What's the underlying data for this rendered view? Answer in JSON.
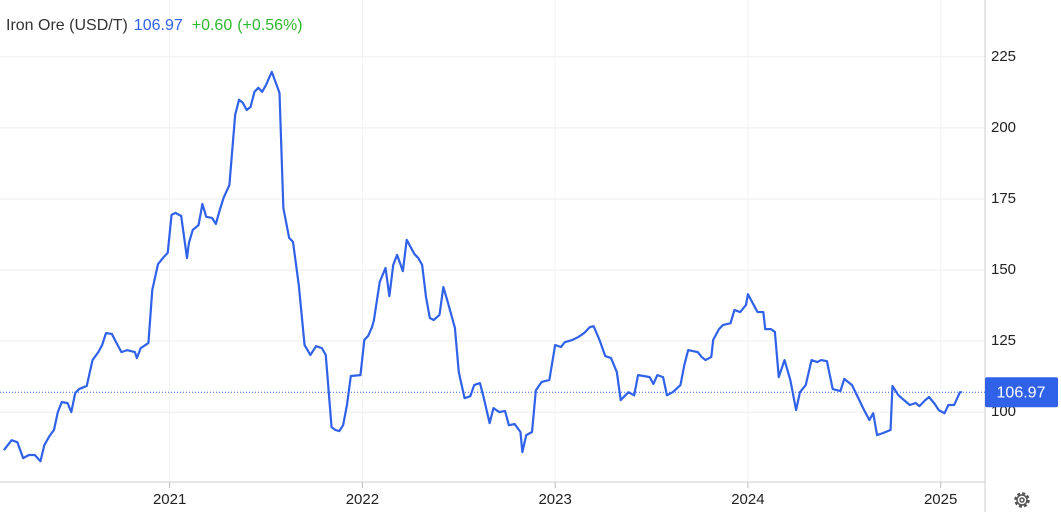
{
  "chart_data": {
    "type": "line",
    "title": "Iron Ore (USD/T)",
    "last_price": 106.97,
    "change": "+0.60",
    "change_pct": "(+0.56%)",
    "xlim": [
      2020.12,
      2025.23
    ],
    "xticks": [
      2021,
      2022,
      2023,
      2024,
      2025
    ],
    "ylim": [
      75.4,
      245
    ],
    "yticks": [
      100,
      125,
      150,
      175,
      200,
      225
    ],
    "grid": true,
    "x": [
      2020.14,
      2020.18,
      2020.21,
      2020.24,
      2020.27,
      2020.3,
      2020.33,
      2020.35,
      2020.38,
      2020.4,
      2020.42,
      2020.44,
      2020.47,
      2020.49,
      2020.51,
      2020.53,
      2020.57,
      2020.6,
      2020.63,
      2020.65,
      2020.67,
      2020.7,
      2020.73,
      2020.75,
      2020.78,
      2020.82,
      2020.83,
      2020.85,
      2020.89,
      2020.91,
      2020.94,
      2020.97,
      2020.99,
      2021.01,
      2021.03,
      2021.06,
      2021.09,
      2021.1,
      2021.12,
      2021.15,
      2021.17,
      2021.19,
      2021.22,
      2021.24,
      2021.26,
      2021.28,
      2021.31,
      2021.34,
      2021.36,
      2021.38,
      2021.4,
      2021.42,
      2021.44,
      2021.46,
      2021.48,
      2021.5,
      2021.53,
      2021.57,
      2021.59,
      2021.62,
      2021.64,
      2021.67,
      2021.7,
      2021.73,
      2021.76,
      2021.79,
      2021.81,
      2021.84,
      2021.86,
      2021.88,
      2021.9,
      2021.92,
      2021.94,
      2021.99,
      2022.01,
      2022.03,
      2022.05,
      2022.06,
      2022.09,
      2022.12,
      2022.14,
      2022.16,
      2022.18,
      2022.21,
      2022.23,
      2022.27,
      2022.29,
      2022.31,
      2022.33,
      2022.35,
      2022.37,
      2022.4,
      2022.42,
      2022.44,
      2022.48,
      2022.5,
      2022.53,
      2022.56,
      2022.58,
      2022.61,
      2022.63,
      2022.66,
      2022.68,
      2022.71,
      2022.74,
      2022.76,
      2022.79,
      2022.82,
      2022.83,
      2022.85,
      2022.88,
      2022.9,
      2022.93,
      2022.97,
      2023.0,
      2023.03,
      2023.05,
      2023.09,
      2023.12,
      2023.15,
      2023.18,
      2023.2,
      2023.23,
      2023.26,
      2023.29,
      2023.32,
      2023.34,
      2023.38,
      2023.41,
      2023.43,
      2023.46,
      2023.49,
      2023.51,
      2023.53,
      2023.56,
      2023.58,
      2023.61,
      2023.65,
      2023.67,
      2023.69,
      2023.72,
      2023.74,
      2023.76,
      2023.78,
      2023.81,
      2023.82,
      2023.85,
      2023.87,
      2023.91,
      2023.93,
      2023.96,
      2023.99,
      2024.0,
      2024.03,
      2024.05,
      2024.08,
      2024.09,
      2024.12,
      2024.14,
      2024.16,
      2024.19,
      2024.22,
      2024.25,
      2024.27,
      2024.3,
      2024.33,
      2024.36,
      2024.38,
      2024.41,
      2024.44,
      2024.48,
      2024.5,
      2024.54,
      2024.57,
      2024.6,
      2024.63,
      2024.65,
      2024.67,
      2024.7,
      2024.74,
      2024.75,
      2024.78,
      2024.81,
      2024.84,
      2024.87,
      2024.89,
      2024.92,
      2024.94,
      2024.97,
      2024.99,
      2025.02,
      2025.04,
      2025.07,
      2025.1,
      2025.11
    ],
    "series": [
      {
        "name": "Iron Ore",
        "color": "#2f62e8",
        "values": [
          86.6,
          90.1,
          89.4,
          83.8,
          84.9,
          84.9,
          82.7,
          88.4,
          91.9,
          93.7,
          100,
          103.5,
          103.2,
          100,
          106.7,
          108.1,
          109.2,
          118.3,
          121.1,
          123.6,
          127.8,
          127.5,
          123.6,
          121.1,
          121.8,
          121.1,
          119,
          122.5,
          124.3,
          143,
          152.1,
          154.6,
          156,
          169.4,
          170.1,
          169,
          154.2,
          159.5,
          164.1,
          165.8,
          173.2,
          168.7,
          168.3,
          166.2,
          171.1,
          175.4,
          179.9,
          204.6,
          209.9,
          208.8,
          206.3,
          207.4,
          212.7,
          214.1,
          212.7,
          215.1,
          219.7,
          212.3,
          171.8,
          161.3,
          159.9,
          144.7,
          123.6,
          120.1,
          123.2,
          122.5,
          120.1,
          94.7,
          93.7,
          93.3,
          95.4,
          102.5,
          112.7,
          113,
          125.4,
          126.8,
          129.9,
          132.4,
          145.8,
          150.7,
          140.8,
          151.8,
          155.3,
          149.6,
          160.6,
          155.6,
          154.2,
          151.8,
          140.5,
          133.1,
          132.4,
          134.2,
          144,
          139.4,
          129.6,
          114.1,
          104.9,
          105.6,
          109.5,
          110.2,
          104.9,
          96.1,
          101.4,
          100,
          100.4,
          95.4,
          95.8,
          93,
          85.9,
          91.9,
          93,
          107.7,
          110.6,
          111.3,
          123.6,
          122.9,
          124.6,
          125.4,
          126.4,
          127.8,
          129.9,
          130.2,
          125.4,
          119.7,
          119,
          114.1,
          104.2,
          107,
          105.9,
          113,
          112.7,
          112.3,
          109.9,
          113,
          112.3,
          105.9,
          107,
          109.5,
          116.5,
          121.8,
          121.4,
          121.1,
          119.4,
          118.3,
          119.4,
          125.4,
          129.2,
          130.6,
          131.3,
          135.9,
          135.2,
          137.7,
          141.5,
          137.7,
          135.2,
          135.2,
          129.2,
          129.2,
          128.2,
          112.3,
          118.3,
          111.3,
          100.7,
          107,
          109.5,
          118.3,
          117.6,
          118.3,
          117.9,
          108.1,
          107.4,
          111.7,
          109.5,
          105.3,
          101.1,
          97.2,
          99.6,
          91.9,
          92.6,
          93.7,
          109.2,
          106,
          104.2,
          102.5,
          103.2,
          102.1,
          104.2,
          105.3,
          102.8,
          100.7,
          99.6,
          102.5,
          102.5,
          107,
          106.97
        ]
      }
    ]
  }
}
